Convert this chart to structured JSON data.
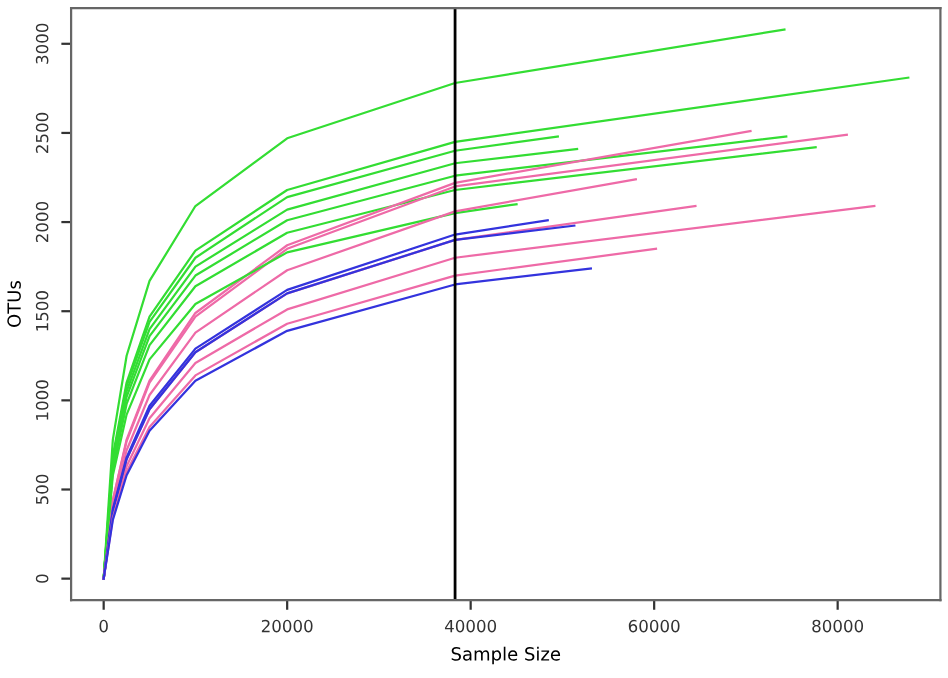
{
  "chart_data": {
    "type": "line",
    "xlabel": "Sample Size",
    "ylabel": "OTUs",
    "xlim": [
      -3550,
      91200
    ],
    "ylim": [
      -120,
      3200
    ],
    "xticks": [
      0,
      20000,
      40000,
      60000,
      80000
    ],
    "yticks": [
      0,
      500,
      1000,
      1500,
      2000,
      2500,
      3000
    ],
    "grid": false,
    "legend": false,
    "marker": "none",
    "line_style": "solid",
    "ref_lines": [
      {
        "axis": "x",
        "value": 38300,
        "color": "#000000"
      }
    ],
    "series": [
      {
        "color": "#33dd33",
        "x": [
          0,
          1000,
          2500,
          5000,
          10000,
          20000,
          38300,
          74200
        ],
        "values": [
          0,
          780,
          1250,
          1670,
          2090,
          2470,
          2780,
          3080
        ]
      },
      {
        "color": "#33dd33",
        "x": [
          0,
          1000,
          2500,
          5000,
          10000,
          20000,
          38300,
          87700
        ],
        "values": [
          0,
          690,
          1100,
          1470,
          1840,
          2180,
          2450,
          2810
        ]
      },
      {
        "color": "#33dd33",
        "x": [
          0,
          1000,
          2500,
          5000,
          10000,
          20000,
          38300,
          49500
        ],
        "values": [
          0,
          670,
          1080,
          1440,
          1800,
          2140,
          2400,
          2480
        ]
      },
      {
        "color": "#33dd33",
        "x": [
          0,
          1000,
          2500,
          5000,
          10000,
          20000,
          38300,
          51600
        ],
        "values": [
          0,
          650,
          1050,
          1400,
          1750,
          2070,
          2330,
          2410
        ]
      },
      {
        "color": "#33dd33",
        "x": [
          0,
          1000,
          2500,
          5000,
          10000,
          20000,
          38300,
          77600
        ],
        "values": [
          0,
          610,
          980,
          1310,
          1640,
          1940,
          2180,
          2420
        ]
      },
      {
        "color": "#33dd33",
        "x": [
          0,
          1000,
          2500,
          5000,
          10000,
          20000,
          38300,
          74400
        ],
        "values": [
          0,
          630,
          1020,
          1360,
          1700,
          2010,
          2260,
          2480
        ]
      },
      {
        "color": "#ee6aa7",
        "x": [
          0,
          1000,
          2500,
          5000,
          10000,
          20000,
          38300,
          70500
        ],
        "values": [
          0,
          440,
          780,
          1110,
          1490,
          1870,
          2220,
          2510
        ]
      },
      {
        "color": "#ee6aa7",
        "x": [
          0,
          1000,
          2500,
          5000,
          10000,
          20000,
          38300,
          81000
        ],
        "values": [
          0,
          440,
          770,
          1100,
          1470,
          1850,
          2200,
          2490
        ]
      },
      {
        "color": "#33dd33",
        "x": [
          0,
          1000,
          2500,
          5000,
          10000,
          20000,
          38300,
          45000
        ],
        "values": [
          0,
          580,
          920,
          1230,
          1540,
          1830,
          2050,
          2100
        ]
      },
      {
        "color": "#ee6aa7",
        "x": [
          0,
          1000,
          2500,
          5000,
          10000,
          20000,
          38300,
          58000
        ],
        "values": [
          0,
          410,
          720,
          1030,
          1380,
          1730,
          2060,
          2240
        ]
      },
      {
        "color": "#ee6aa7",
        "x": [
          0,
          1000,
          2500,
          5000,
          10000,
          20000,
          38300,
          64500
        ],
        "values": [
          0,
          380,
          670,
          950,
          1270,
          1600,
          1900,
          2090
        ]
      },
      {
        "color": "#ee6aa7",
        "x": [
          0,
          1000,
          2500,
          5000,
          10000,
          20000,
          38300,
          84000
        ],
        "values": [
          0,
          360,
          630,
          900,
          1210,
          1510,
          1800,
          2090
        ]
      },
      {
        "color": "#3333dd",
        "x": [
          0,
          1000,
          2500,
          5000,
          10000,
          20000,
          38300,
          48400
        ],
        "values": [
          0,
          390,
          680,
          970,
          1290,
          1620,
          1930,
          2010
        ]
      },
      {
        "color": "#3333dd",
        "x": [
          0,
          1000,
          2500,
          5000,
          10000,
          20000,
          38300,
          51300
        ],
        "values": [
          0,
          380,
          670,
          950,
          1270,
          1600,
          1900,
          1980
        ]
      },
      {
        "color": "#ee6aa7",
        "x": [
          0,
          1000,
          2500,
          5000,
          10000,
          20000,
          38300,
          60200
        ],
        "values": [
          0,
          340,
          600,
          850,
          1140,
          1430,
          1700,
          1850
        ]
      },
      {
        "color": "#3333dd",
        "x": [
          0,
          1000,
          2500,
          5000,
          10000,
          20000,
          38300,
          53100
        ],
        "values": [
          0,
          330,
          580,
          830,
          1110,
          1390,
          1650,
          1740
        ]
      }
    ]
  }
}
